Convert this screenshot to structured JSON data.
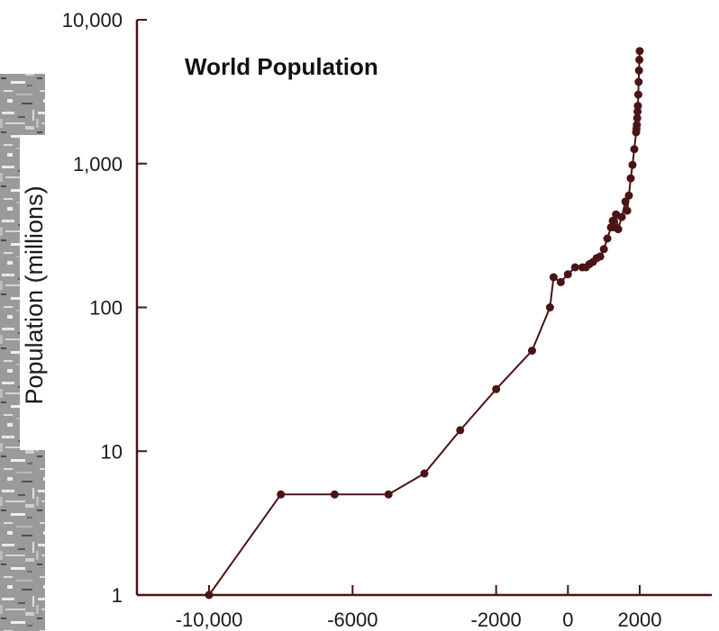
{
  "chart_data": {
    "type": "line",
    "title": "World Population",
    "xlabel": "",
    "ylabel": "Population (millions)",
    "y_scale": "log",
    "ylim": [
      1,
      10000
    ],
    "xlim": [
      -12000,
      4000
    ],
    "x_ticks": [
      -10000,
      -6000,
      -2000,
      0,
      2000
    ],
    "x_tick_labels": [
      "-10,000",
      "-6000",
      "-2000",
      "0",
      "2000"
    ],
    "y_ticks": [
      1,
      10,
      100,
      1000,
      10000
    ],
    "y_tick_labels": [
      "1",
      "10",
      "100",
      "1,000",
      "10,000"
    ],
    "grid": false,
    "series": [
      {
        "color": "#4a1414",
        "points": [
          [
            -10000,
            1
          ],
          [
            -8000,
            5
          ],
          [
            -6500,
            5
          ],
          [
            -5000,
            5
          ],
          [
            -4000,
            7
          ],
          [
            -3000,
            14
          ],
          [
            -2000,
            27
          ],
          [
            -1000,
            50
          ],
          [
            -500,
            100
          ],
          [
            -400,
            162
          ],
          [
            -200,
            150
          ],
          [
            0,
            170
          ],
          [
            200,
            190
          ],
          [
            400,
            190
          ],
          [
            500,
            190
          ],
          [
            600,
            200
          ],
          [
            700,
            207
          ],
          [
            800,
            220
          ],
          [
            900,
            226
          ],
          [
            1000,
            254
          ],
          [
            1100,
            301
          ],
          [
            1200,
            360
          ],
          [
            1250,
            400
          ],
          [
            1300,
            360
          ],
          [
            1340,
            443
          ],
          [
            1400,
            350
          ],
          [
            1500,
            425
          ],
          [
            1600,
            545
          ],
          [
            1650,
            470
          ],
          [
            1700,
            600
          ],
          [
            1750,
            790
          ],
          [
            1800,
            980
          ],
          [
            1850,
            1260
          ],
          [
            1900,
            1650
          ],
          [
            1910,
            1750
          ],
          [
            1920,
            1860
          ],
          [
            1930,
            2070
          ],
          [
            1940,
            2300
          ],
          [
            1950,
            2520
          ],
          [
            1960,
            3020
          ],
          [
            1970,
            3700
          ],
          [
            1980,
            4440
          ],
          [
            1990,
            5270
          ],
          [
            2000,
            6060
          ]
        ]
      }
    ]
  },
  "background": {
    "label": "Stone texture panel"
  }
}
